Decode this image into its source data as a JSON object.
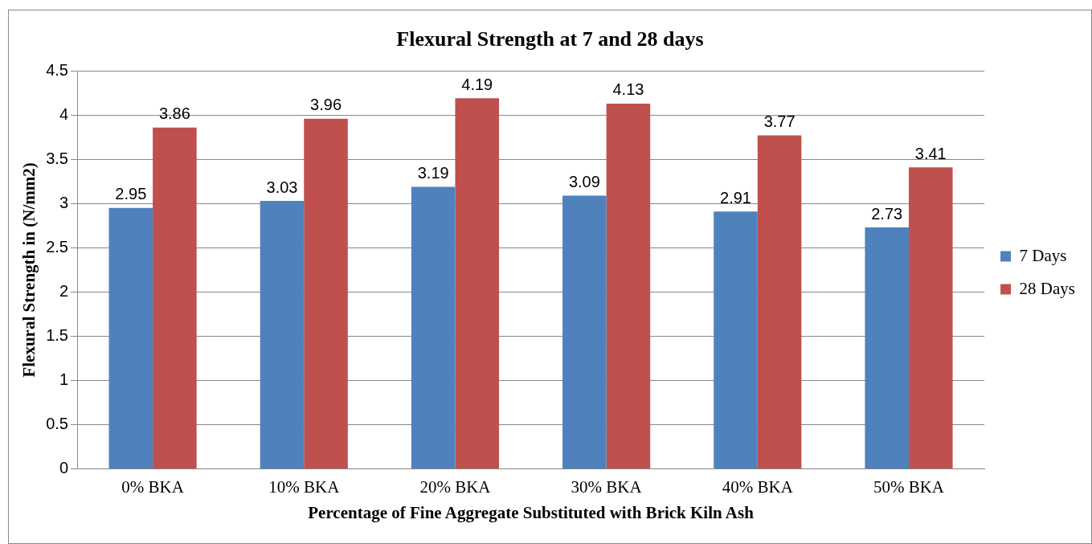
{
  "chart_data": {
    "type": "bar",
    "title": "Flexural Strength at 7 and 28 days",
    "xlabel": "Percentage of Fine Aggregate Substituted with Brick Kiln Ash",
    "ylabel": "Flexural Strength in (N/mm2)",
    "categories": [
      "0% BKA",
      "10% BKA",
      "20% BKA",
      "30% BKA",
      "40% BKA",
      "50% BKA"
    ],
    "series": [
      {
        "name": "7 Days",
        "color": "#4f81bd",
        "values": [
          2.95,
          3.03,
          3.19,
          3.09,
          2.91,
          2.73
        ]
      },
      {
        "name": "28 Days",
        "color": "#c0504d",
        "values": [
          3.86,
          3.96,
          4.19,
          4.13,
          3.77,
          3.41
        ]
      }
    ],
    "ylim": [
      0,
      4.5
    ],
    "yticks": [
      0,
      0.5,
      1,
      1.5,
      2,
      2.5,
      3,
      3.5,
      4,
      4.5
    ],
    "grid": "y",
    "legend": "right",
    "data_labels": true
  }
}
